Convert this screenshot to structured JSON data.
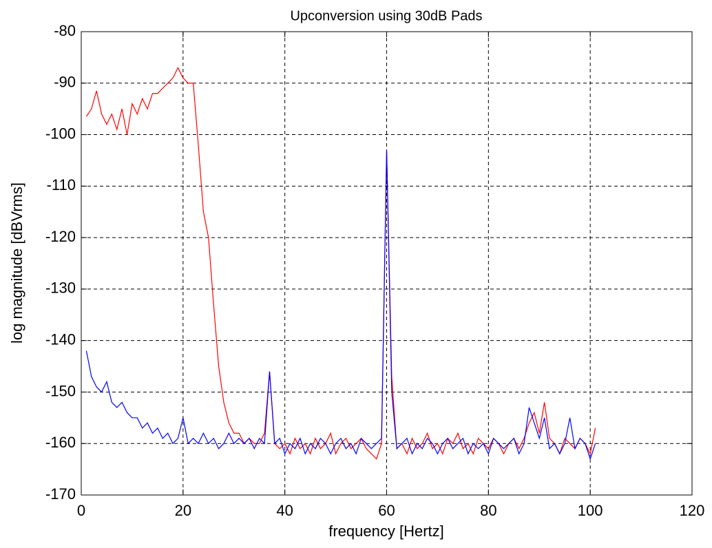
{
  "chart_data": {
    "type": "line",
    "title": "Upconversion using 30dB Pads",
    "x_label": "frequency [Hertz]",
    "y_label": "log magnitude [dBVrms]",
    "x": [
      1,
      2,
      3,
      4,
      5,
      6,
      7,
      8,
      9,
      10,
      11,
      12,
      13,
      14,
      15,
      16,
      17,
      18,
      19,
      20,
      21,
      22,
      23,
      24,
      25,
      26,
      27,
      28,
      29,
      30,
      31,
      32,
      33,
      34,
      35,
      36,
      37,
      38,
      39,
      40,
      41,
      42,
      43,
      44,
      45,
      46,
      47,
      48,
      49,
      50,
      51,
      52,
      53,
      54,
      55,
      56,
      57,
      58,
      59,
      60,
      61,
      62,
      63,
      64,
      65,
      66,
      67,
      68,
      69,
      70,
      71,
      72,
      73,
      74,
      75,
      76,
      77,
      78,
      79,
      80,
      81,
      82,
      83,
      84,
      85,
      86,
      87,
      88,
      89,
      90,
      91,
      92,
      93,
      94,
      95,
      96,
      97,
      98,
      99,
      100,
      101
    ],
    "series": [
      {
        "color": "#ff0000",
        "values": [
          -96.5,
          -95,
          -91.5,
          -96,
          -98,
          -96,
          -99,
          -95,
          -100,
          -94,
          -96,
          -93,
          -95,
          -92,
          -92,
          -91,
          -90,
          -89,
          -87,
          -89,
          -90,
          -90,
          -102,
          -115,
          -120,
          -133,
          -145,
          -152,
          -156,
          -158,
          -158,
          -160,
          -159,
          -160,
          -160,
          -158,
          -146,
          -160,
          -161,
          -160,
          -162,
          -159,
          -161,
          -160,
          -162,
          -159,
          -161,
          -160,
          -158,
          -162,
          -160,
          -159,
          -161,
          -160,
          -159,
          -161,
          -162,
          -163,
          -160,
          -103,
          -147,
          -161,
          -160,
          -162,
          -159,
          -161,
          -160,
          -158,
          -161,
          -160,
          -162,
          -159,
          -160,
          -158,
          -161,
          -160,
          -162,
          -159,
          -160,
          -161,
          -159,
          -160,
          -162,
          -160,
          -159,
          -161,
          -159,
          -156,
          -154,
          -158,
          -152,
          -159,
          -160,
          -162,
          -159,
          -160,
          -161,
          -159,
          -160,
          -162,
          -157
        ]
      },
      {
        "color": "#0000ff",
        "values": [
          -142,
          -147,
          -149,
          -150,
          -148,
          -152,
          -153,
          -152,
          -154,
          -155,
          -155,
          -157,
          -156,
          -158,
          -157,
          -159,
          -158,
          -160,
          -159,
          -155,
          -160,
          -159,
          -160,
          -158,
          -160,
          -159,
          -161,
          -160,
          -158,
          -160,
          -159,
          -160,
          -159,
          -161,
          -159,
          -160,
          -146,
          -160,
          -159,
          -162,
          -160,
          -161,
          -159,
          -162,
          -160,
          -161,
          -159,
          -160,
          -162,
          -160,
          -159,
          -161,
          -160,
          -162,
          -159,
          -160,
          -161,
          -160,
          -159,
          -103,
          -150,
          -161,
          -160,
          -159,
          -162,
          -160,
          -161,
          -159,
          -160,
          -162,
          -160,
          -159,
          -161,
          -160,
          -159,
          -162,
          -160,
          -161,
          -160,
          -162,
          -159,
          -160,
          -161,
          -160,
          -159,
          -162,
          -160,
          -153,
          -156,
          -159,
          -155,
          -161,
          -160,
          -162,
          -160,
          -155,
          -161,
          -159,
          -160,
          -163,
          -160
        ]
      }
    ],
    "xlim": [
      0,
      120
    ],
    "xticks": [
      0,
      20,
      40,
      60,
      80,
      100,
      120
    ],
    "ylim": [
      -170,
      -80
    ],
    "yticks": [
      -170,
      -160,
      -150,
      -140,
      -130,
      -120,
      -110,
      -100,
      -90,
      -80
    ],
    "grid": true
  }
}
